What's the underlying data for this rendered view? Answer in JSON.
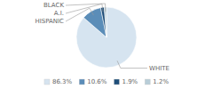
{
  "chart_data": {
    "type": "pie",
    "categories": [
      "WHITE",
      "HISPANIC",
      "A.I.",
      "BLACK"
    ],
    "values": [
      86.3,
      10.6,
      1.9,
      1.2
    ],
    "value_labels": [
      "86.3%",
      "10.6%",
      "1.9%",
      "1.2%"
    ],
    "colors": [
      "#d6e4f0",
      "#5b8db8",
      "#1f4e79",
      "#b8cdd8"
    ],
    "legend": "bottom"
  }
}
